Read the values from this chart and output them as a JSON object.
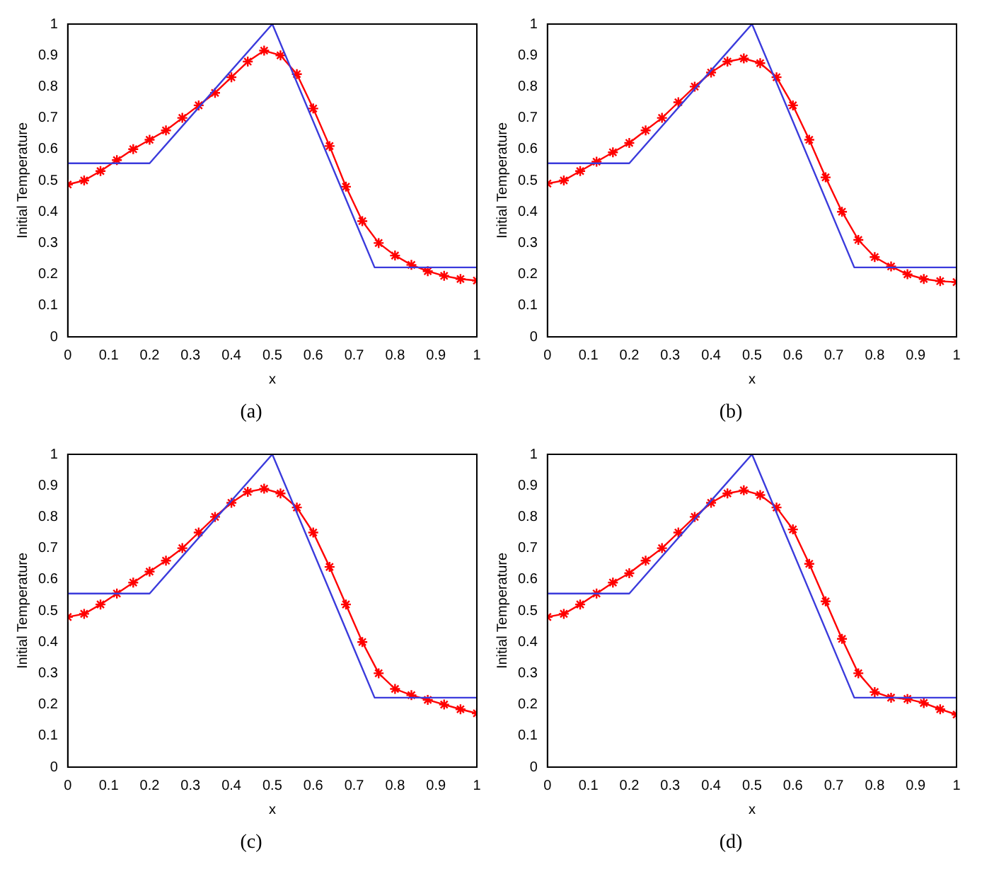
{
  "chart_data": [
    {
      "type": "line",
      "xlabel": "x",
      "ylabel": "Initial Temperature",
      "annotations": [
        "(a)"
      ],
      "xlim": [
        0,
        1
      ],
      "ylim": [
        0,
        1
      ],
      "xticks": [
        0,
        0.1,
        0.2,
        0.3,
        0.4,
        0.5,
        0.6,
        0.7,
        0.8,
        0.9,
        1
      ],
      "yticks": [
        0,
        0.1,
        0.2,
        0.3,
        0.4,
        0.5,
        0.6,
        0.7,
        0.8,
        0.9,
        1
      ],
      "grid": false,
      "legend": false,
      "series": [
        {
          "color": "#3b3bdc",
          "marker": "none",
          "x": [
            0,
            0.2,
            0.5,
            0.75,
            1
          ],
          "values": [
            0.555,
            0.555,
            1,
            0.222,
            0.222
          ]
        },
        {
          "color": "#ff0000",
          "marker": "cross",
          "x": [
            0,
            0.04,
            0.08,
            0.12,
            0.16,
            0.2,
            0.24,
            0.28,
            0.32,
            0.36,
            0.4,
            0.44,
            0.48,
            0.52,
            0.56,
            0.6,
            0.64,
            0.68,
            0.72,
            0.76,
            0.8,
            0.84,
            0.88,
            0.92,
            0.96,
            1
          ],
          "values": [
            0.487,
            0.5,
            0.53,
            0.565,
            0.6,
            0.63,
            0.66,
            0.7,
            0.74,
            0.78,
            0.83,
            0.88,
            0.915,
            0.9,
            0.84,
            0.73,
            0.61,
            0.48,
            0.37,
            0.3,
            0.26,
            0.23,
            0.21,
            0.195,
            0.185,
            0.18
          ]
        }
      ]
    },
    {
      "type": "line",
      "xlabel": "x",
      "ylabel": "Initial Temperature",
      "annotations": [
        "(b)"
      ],
      "xlim": [
        0,
        1
      ],
      "ylim": [
        0,
        1
      ],
      "xticks": [
        0,
        0.1,
        0.2,
        0.3,
        0.4,
        0.5,
        0.6,
        0.7,
        0.8,
        0.9,
        1
      ],
      "yticks": [
        0,
        0.1,
        0.2,
        0.3,
        0.4,
        0.5,
        0.6,
        0.7,
        0.8,
        0.9,
        1
      ],
      "grid": false,
      "legend": false,
      "series": [
        {
          "color": "#3b3bdc",
          "marker": "none",
          "x": [
            0,
            0.2,
            0.5,
            0.75,
            1
          ],
          "values": [
            0.555,
            0.555,
            1,
            0.222,
            0.222
          ]
        },
        {
          "color": "#ff0000",
          "marker": "cross",
          "x": [
            0,
            0.04,
            0.08,
            0.12,
            0.16,
            0.2,
            0.24,
            0.28,
            0.32,
            0.36,
            0.4,
            0.44,
            0.48,
            0.52,
            0.56,
            0.6,
            0.64,
            0.68,
            0.72,
            0.76,
            0.8,
            0.84,
            0.88,
            0.92,
            0.96,
            1
          ],
          "values": [
            0.49,
            0.5,
            0.53,
            0.56,
            0.59,
            0.62,
            0.66,
            0.7,
            0.75,
            0.8,
            0.845,
            0.88,
            0.89,
            0.875,
            0.83,
            0.74,
            0.63,
            0.51,
            0.4,
            0.31,
            0.255,
            0.225,
            0.2,
            0.185,
            0.178,
            0.175
          ]
        }
      ]
    },
    {
      "type": "line",
      "xlabel": "x",
      "ylabel": "Initial Temperature",
      "annotations": [
        "(c)"
      ],
      "xlim": [
        0,
        1
      ],
      "ylim": [
        0,
        1
      ],
      "xticks": [
        0,
        0.1,
        0.2,
        0.3,
        0.4,
        0.5,
        0.6,
        0.7,
        0.8,
        0.9,
        1
      ],
      "yticks": [
        0,
        0.1,
        0.2,
        0.3,
        0.4,
        0.5,
        0.6,
        0.7,
        0.8,
        0.9,
        1
      ],
      "grid": false,
      "legend": false,
      "series": [
        {
          "color": "#3b3bdc",
          "marker": "none",
          "x": [
            0,
            0.2,
            0.5,
            0.75,
            1
          ],
          "values": [
            0.555,
            0.555,
            1,
            0.222,
            0.222
          ]
        },
        {
          "color": "#ff0000",
          "marker": "cross",
          "x": [
            0,
            0.04,
            0.08,
            0.12,
            0.16,
            0.2,
            0.24,
            0.28,
            0.32,
            0.36,
            0.4,
            0.44,
            0.48,
            0.52,
            0.56,
            0.6,
            0.64,
            0.68,
            0.72,
            0.76,
            0.8,
            0.84,
            0.88,
            0.92,
            0.96,
            1
          ],
          "values": [
            0.48,
            0.49,
            0.52,
            0.555,
            0.59,
            0.625,
            0.66,
            0.7,
            0.75,
            0.8,
            0.845,
            0.88,
            0.89,
            0.875,
            0.83,
            0.75,
            0.64,
            0.52,
            0.4,
            0.3,
            0.25,
            0.23,
            0.215,
            0.2,
            0.185,
            0.172
          ]
        }
      ]
    },
    {
      "type": "line",
      "xlabel": "x",
      "ylabel": "Initial Temperature",
      "annotations": [
        "(d)"
      ],
      "xlim": [
        0,
        1
      ],
      "ylim": [
        0,
        1
      ],
      "xticks": [
        0,
        0.1,
        0.2,
        0.3,
        0.4,
        0.5,
        0.6,
        0.7,
        0.8,
        0.9,
        1
      ],
      "yticks": [
        0,
        0.1,
        0.2,
        0.3,
        0.4,
        0.5,
        0.6,
        0.7,
        0.8,
        0.9,
        1
      ],
      "grid": false,
      "legend": false,
      "series": [
        {
          "color": "#3b3bdc",
          "marker": "none",
          "x": [
            0,
            0.2,
            0.5,
            0.75,
            1
          ],
          "values": [
            0.555,
            0.555,
            1,
            0.222,
            0.222
          ]
        },
        {
          "color": "#ff0000",
          "marker": "cross",
          "x": [
            0,
            0.04,
            0.08,
            0.12,
            0.16,
            0.2,
            0.24,
            0.28,
            0.32,
            0.36,
            0.4,
            0.44,
            0.48,
            0.52,
            0.56,
            0.6,
            0.64,
            0.68,
            0.72,
            0.76,
            0.8,
            0.84,
            0.88,
            0.92,
            0.96,
            1
          ],
          "values": [
            0.48,
            0.49,
            0.52,
            0.555,
            0.59,
            0.62,
            0.66,
            0.7,
            0.75,
            0.8,
            0.845,
            0.875,
            0.885,
            0.87,
            0.83,
            0.76,
            0.65,
            0.53,
            0.41,
            0.3,
            0.24,
            0.222,
            0.218,
            0.205,
            0.185,
            0.168
          ]
        }
      ]
    }
  ]
}
